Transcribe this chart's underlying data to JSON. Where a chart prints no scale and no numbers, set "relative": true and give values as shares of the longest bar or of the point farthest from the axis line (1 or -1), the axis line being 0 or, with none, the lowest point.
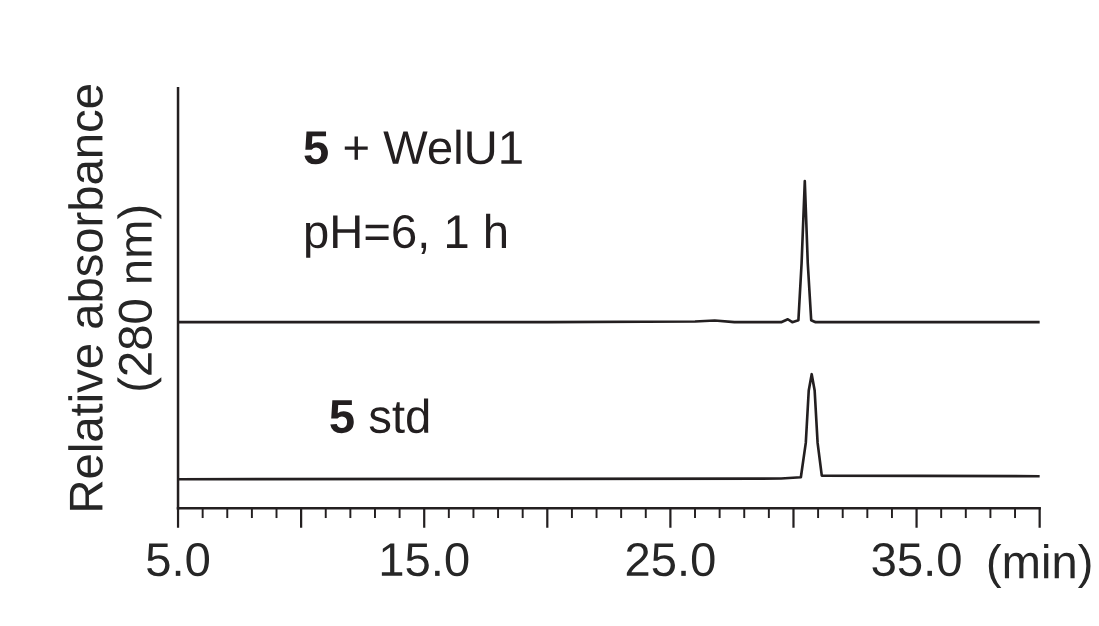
{
  "chart_data": {
    "type": "line",
    "relative": true,
    "ylabel": "Relative absorbance\n(280 nm)",
    "xlabel": "(min)",
    "xlim": [
      5,
      40
    ],
    "xticks": [
      {
        "value": 5,
        "label": "5.0"
      },
      {
        "value": 15,
        "label": "15.0"
      },
      {
        "value": 25,
        "label": "25.0"
      },
      {
        "value": 35,
        "label": "35.0"
      }
    ],
    "tick_labels": "x",
    "grid": false,
    "legend": false,
    "marker": "none",
    "line_style": "solid",
    "annotations": [
      "5 + WelU1",
      "pH=6, 1 h",
      "5 std"
    ],
    "series": [
      {
        "color": "#231f20",
        "x": [
          5,
          20,
          26.0,
          26.8,
          27.6,
          29.5,
          29.77,
          29.95,
          30.2,
          30.33,
          30.46,
          30.58,
          30.72,
          30.9,
          40
        ],
        "values": [
          0.569,
          0.569,
          0.571,
          0.574,
          0.569,
          0.569,
          0.578,
          0.569,
          0.575,
          0.75,
          1.0,
          0.75,
          0.575,
          0.569,
          0.569
        ]
      },
      {
        "color": "#231f20",
        "x": [
          5,
          20,
          29.5,
          30.3,
          30.5,
          30.62,
          30.74,
          30.86,
          30.98,
          31.15,
          40
        ],
        "values": [
          0.089,
          0.09,
          0.091,
          0.095,
          0.2,
          0.36,
          0.41,
          0.36,
          0.2,
          0.1,
          0.098
        ]
      }
    ]
  }
}
